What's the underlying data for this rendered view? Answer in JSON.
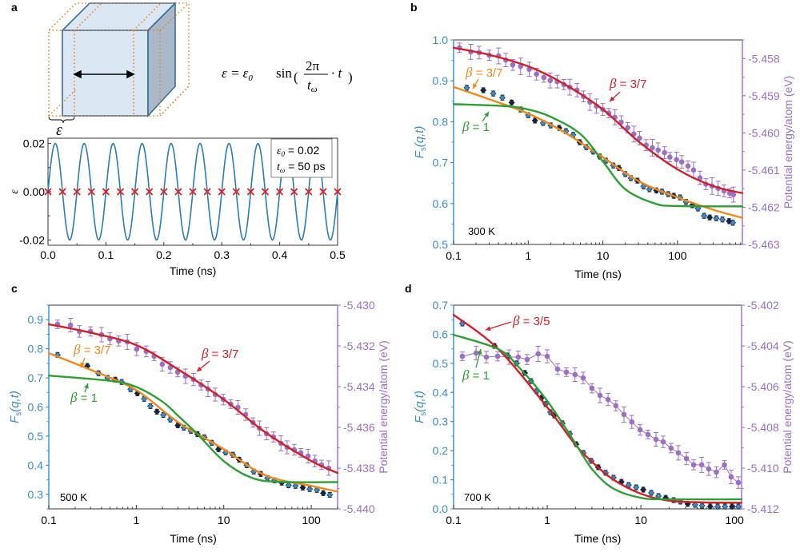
{
  "colors": {
    "left_axis": "#3a8cc4",
    "right_axis": "#9b6fc4",
    "energy_points": "#9b6fc4",
    "fs_points_fill": "#3a8cc4",
    "fs_points_edge": "#14233f",
    "fit_red": "#d0202a",
    "fit_orange": "#f0891c",
    "fit_green": "#2e9e35",
    "sine": "#2a7db5",
    "markers": "#e02020",
    "box_fill": "#dbe7f3",
    "box_side": "#a9b9c9",
    "box_edge": "#3b6b9a",
    "dotted": "#e8832a"
  },
  "panel_a": {
    "letter": "a",
    "equation": {
      "lhs": "ε = ε",
      "sub0": "0",
      "fn": "sin",
      "num": "2π",
      "den": "t",
      "den_sub": "ω",
      "tail": "· t"
    },
    "strain_symbol": "ε"
  },
  "chart_data": [
    {
      "id": "a",
      "type": "line",
      "title": "",
      "xlabel": "Time (ns)",
      "ylabel": "ε",
      "xlim": [
        0,
        0.5
      ],
      "ylim": [
        -0.0222,
        0.0222
      ],
      "xticks": [
        0.0,
        0.1,
        0.2,
        0.3,
        0.4,
        0.5
      ],
      "xtick_labels": [
        "0.0",
        "0.1",
        "0.2",
        "0.3",
        "0.4",
        "0.5"
      ],
      "yticks": [
        -0.02,
        0.0,
        0.02
      ],
      "ytick_labels": [
        "-0.02",
        "0.00",
        "0.02"
      ],
      "series": [
        {
          "name": "strain",
          "kind": "sine",
          "amplitude": 0.02,
          "period_ns": 0.05
        }
      ],
      "markers": {
        "name": "sampling points",
        "symbol": "x",
        "x_start": 0,
        "x_step": 0.025,
        "count": 21,
        "y": 0
      },
      "legend": {
        "placement": "top-right",
        "lines": [
          {
            "sym": "ε",
            "sub": "0",
            "text": " = 0.02"
          },
          {
            "sym": "t",
            "sub": "ω",
            "text": " = 50 ps"
          }
        ]
      }
    },
    {
      "id": "b",
      "type": "scatter",
      "temperature_label": "300 K",
      "xlabel": "Time (ns)",
      "ylabel_left": {
        "main": "F",
        "sub": "s",
        "args": "(q,t)"
      },
      "ylabel_right": "Potential energy/atom (eV)",
      "xscale": "log",
      "xlim": [
        0.1,
        740
      ],
      "ylim_left": [
        0.5,
        1.0
      ],
      "ylim_right": [
        -5.463,
        -5.4575
      ],
      "xticks": [
        0.1,
        1,
        10,
        100
      ],
      "xtick_labels": [
        "0.1",
        "1",
        "10",
        "100"
      ],
      "yticks_left": [
        0.5,
        0.6,
        0.7,
        0.8,
        0.9,
        1.0
      ],
      "ytick_labels_left": [
        "0.5",
        "0.6",
        "0.7",
        "0.8",
        "0.9",
        "1.0"
      ],
      "yticks_right": [
        -5.463,
        -5.462,
        -5.461,
        -5.46,
        -5.459,
        -5.458
      ],
      "ytick_labels_right": [
        "-5.463",
        "-5.462",
        "-5.461",
        "-5.460",
        "-5.459",
        "-5.458"
      ],
      "fs_data": {
        "t": [
          0.15,
          0.25,
          0.34,
          0.45,
          0.6,
          0.79,
          1.0,
          1.23,
          1.58,
          2.0,
          2.6,
          3.2,
          4.0,
          4.9,
          6.0,
          7.4,
          9.1,
          11,
          13.8,
          16.4,
          20,
          23.7,
          29,
          35,
          42,
          52,
          62,
          75,
          89,
          108,
          130,
          158,
          188,
          227,
          270,
          330,
          400,
          490,
          550
        ],
        "v": [
          0.883,
          0.877,
          0.869,
          0.859,
          0.847,
          0.83,
          0.816,
          0.803,
          0.797,
          0.791,
          0.785,
          0.777,
          0.768,
          0.75,
          0.738,
          0.727,
          0.715,
          0.705,
          0.693,
          0.687,
          0.672,
          0.662,
          0.656,
          0.642,
          0.635,
          0.632,
          0.629,
          0.623,
          0.619,
          0.615,
          0.604,
          0.596,
          0.588,
          0.57,
          0.566,
          0.564,
          0.561,
          0.557,
          0.553
        ],
        "err": 0.006
      },
      "energy_data": {
        "t": [
          0.12,
          0.17,
          0.22,
          0.3,
          0.4,
          0.5,
          0.62,
          0.79,
          1.03,
          1.29,
          1.62,
          1.97,
          2.45,
          3.0,
          3.6,
          4.5,
          5.5,
          6.7,
          8.2,
          10,
          12,
          14.5,
          17.6,
          21.5,
          26,
          31,
          38,
          46,
          55,
          67,
          79,
          97,
          114,
          138,
          164,
          200,
          240,
          290,
          350,
          420,
          500,
          560
        ],
        "v": [
          -5.45771,
          -5.45782,
          -5.45784,
          -5.45791,
          -5.45793,
          -5.45804,
          -5.45817,
          -5.45821,
          -5.45829,
          -5.45842,
          -5.45851,
          -5.45859,
          -5.45862,
          -5.4587,
          -5.45877,
          -5.45885,
          -5.45902,
          -5.45917,
          -5.45928,
          -5.45937,
          -5.45947,
          -5.45958,
          -5.45971,
          -5.45986,
          -5.46003,
          -5.46014,
          -5.46033,
          -5.4604,
          -5.46046,
          -5.46053,
          -5.46065,
          -5.46072,
          -5.46078,
          -5.46089,
          -5.461,
          -5.46121,
          -5.46138,
          -5.46143,
          -5.46149,
          -5.46156,
          -5.46162,
          -5.46166
        ],
        "err": 0.00018
      },
      "fits": [
        {
          "name": "β = 3/7 (Fs)",
          "color_key": "fit_orange",
          "axis": "left",
          "t": [
            0.1,
            0.3,
            1,
            3,
            10,
            30,
            100,
            300,
            740
          ],
          "v": [
            0.885,
            0.855,
            0.82,
            0.775,
            0.713,
            0.655,
            0.615,
            0.585,
            0.565
          ]
        },
        {
          "name": "β = 1 (Fs)",
          "color_key": "fit_green",
          "axis": "left",
          "t": [
            0.1,
            0.5,
            1,
            2,
            5,
            10,
            20,
            50,
            100,
            740
          ],
          "v": [
            0.843,
            0.838,
            0.83,
            0.812,
            0.77,
            0.703,
            0.635,
            0.6,
            0.594,
            0.593
          ]
        },
        {
          "name": "β = 3/7 (energy)",
          "color_key": "fit_red",
          "axis": "right",
          "t": [
            0.1,
            0.3,
            1,
            3,
            10,
            30,
            100,
            300,
            740
          ],
          "v": [
            -5.45771,
            -5.4579,
            -5.45821,
            -5.45868,
            -5.45937,
            -5.46023,
            -5.46098,
            -5.46143,
            -5.46162
          ]
        }
      ],
      "annotations": [
        {
          "text_sym": "β",
          "text": " = 3/7",
          "color_key": "fit_orange"
        },
        {
          "text_sym": "β",
          "text": " = 1",
          "color_key": "fit_green"
        },
        {
          "text_sym": "β",
          "text": " = 3/7",
          "color_key": "fit_red"
        }
      ]
    },
    {
      "id": "c",
      "type": "scatter",
      "temperature_label": "500 K",
      "xlabel": "Time (ns)",
      "ylabel_left": {
        "main": "F",
        "sub": "s",
        "args": "(q,t)"
      },
      "ylabel_right": "Potential energy/atom (eV)",
      "xscale": "log",
      "xlim": [
        0.1,
        200
      ],
      "ylim_left": [
        0.25,
        0.95
      ],
      "ylim_right": [
        -5.44,
        -5.43
      ],
      "xticks": [
        0.1,
        1,
        10,
        100
      ],
      "xtick_labels": [
        "0.1",
        "1",
        "10",
        "100"
      ],
      "yticks_left": [
        0.3,
        0.4,
        0.5,
        0.6,
        0.7,
        0.8,
        0.9
      ],
      "ytick_labels_left": [
        "0.3",
        "0.4",
        "0.5",
        "0.6",
        "0.7",
        "0.8",
        "0.9"
      ],
      "yticks_right": [
        -5.44,
        -5.438,
        -5.436,
        -5.434,
        -5.432,
        -5.43
      ],
      "ytick_labels_right": [
        "-5.440",
        "-5.438",
        "-5.436",
        "-5.434",
        "-5.432",
        "-5.430"
      ],
      "fs_data": {
        "t": [
          0.126,
          0.276,
          0.37,
          0.47,
          0.575,
          0.68,
          0.86,
          1.03,
          1.23,
          1.45,
          1.72,
          2.04,
          2.45,
          2.98,
          3.5,
          4.2,
          5.0,
          6.0,
          7.3,
          8.7,
          10.5,
          12.7,
          15,
          18.3,
          22,
          26.5,
          31.5,
          38,
          46,
          55,
          66,
          80,
          96,
          116,
          137,
          163
        ],
        "v": [
          0.779,
          0.741,
          0.716,
          0.7,
          0.694,
          0.686,
          0.661,
          0.647,
          0.628,
          0.603,
          0.584,
          0.573,
          0.557,
          0.537,
          0.529,
          0.518,
          0.507,
          0.496,
          0.477,
          0.455,
          0.444,
          0.436,
          0.419,
          0.4,
          0.378,
          0.37,
          0.356,
          0.348,
          0.34,
          0.331,
          0.329,
          0.323,
          0.318,
          0.315,
          0.304,
          0.298
        ],
        "err": 0.006
      },
      "energy_data": {
        "t": [
          0.126,
          0.177,
          0.224,
          0.3,
          0.4,
          0.5,
          0.63,
          0.79,
          1.01,
          1.3,
          1.6,
          1.98,
          2.45,
          2.97,
          3.65,
          4.5,
          5.5,
          6.6,
          8.0,
          9.9,
          12,
          14.5,
          17.8,
          21.6,
          25.6,
          30.8,
          37,
          45,
          53,
          64,
          76,
          92,
          110,
          131,
          158
        ],
        "v": [
          -5.43094,
          -5.43098,
          -5.43129,
          -5.43129,
          -5.43145,
          -5.43165,
          -5.43176,
          -5.4318,
          -5.43216,
          -5.43227,
          -5.43251,
          -5.4329,
          -5.43306,
          -5.43329,
          -5.43349,
          -5.43365,
          -5.43392,
          -5.43412,
          -5.43439,
          -5.43463,
          -5.43486,
          -5.43502,
          -5.43537,
          -5.43576,
          -5.43604,
          -5.43631,
          -5.43647,
          -5.43678,
          -5.43698,
          -5.4371,
          -5.43725,
          -5.43741,
          -5.43765,
          -5.43784,
          -5.438
        ],
        "err": 0.0003
      },
      "fits": [
        {
          "name": "β = 3/7 (Fs)",
          "color_key": "fit_orange",
          "axis": "left",
          "t": [
            0.1,
            0.3,
            1,
            3,
            10,
            30,
            100,
            200
          ],
          "v": [
            0.785,
            0.728,
            0.658,
            0.548,
            0.455,
            0.365,
            0.329,
            0.309
          ]
        },
        {
          "name": "β = 1 (Fs)",
          "color_key": "fit_green",
          "axis": "left",
          "t": [
            0.1,
            0.5,
            1,
            2,
            3,
            5,
            10,
            20,
            40,
            200
          ],
          "v": [
            0.708,
            0.69,
            0.669,
            0.618,
            0.57,
            0.507,
            0.414,
            0.359,
            0.343,
            0.342
          ]
        },
        {
          "name": "β = 3/7 (energy)",
          "color_key": "fit_red",
          "axis": "right",
          "t": [
            0.1,
            0.3,
            1,
            3,
            10,
            30,
            100,
            200
          ],
          "v": [
            -5.43094,
            -5.43135,
            -5.43196,
            -5.43315,
            -5.43463,
            -5.43625,
            -5.43765,
            -5.43824
          ]
        }
      ],
      "annotations": [
        {
          "text_sym": "β",
          "text": " = 3/7",
          "color_key": "fit_orange"
        },
        {
          "text_sym": "β",
          "text": " = 1",
          "color_key": "fit_green"
        },
        {
          "text_sym": "β",
          "text": " = 3/7",
          "color_key": "fit_red"
        }
      ]
    },
    {
      "id": "d",
      "type": "scatter",
      "temperature_label": "700 K",
      "xlabel": "Time (ns)",
      "ylabel_left": {
        "main": "F",
        "sub": "s",
        "args": "(q,t)"
      },
      "ylabel_right": "Potential energy/atom (eV)",
      "xscale": "log",
      "xlim": [
        0.1,
        119
      ],
      "ylim_left": [
        0.0,
        0.7
      ],
      "ylim_right": [
        -5.412,
        -5.402
      ],
      "xticks": [
        0.1,
        1,
        10,
        100
      ],
      "xtick_labels": [
        "0.1",
        "1",
        "10",
        "100"
      ],
      "yticks_left": [
        0.0,
        0.1,
        0.2,
        0.3,
        0.4,
        0.5,
        0.6,
        0.7
      ],
      "ytick_labels_left": [
        "0.0",
        "0.1",
        "0.2",
        "0.3",
        "0.4",
        "0.5",
        "0.6",
        "0.7"
      ],
      "yticks_right": [
        -5.412,
        -5.41,
        -5.408,
        -5.406,
        -5.404,
        -5.402
      ],
      "ytick_labels_right": [
        "-5.412",
        "-5.410",
        "-5.408",
        "-5.406",
        "-5.404",
        "-5.402"
      ],
      "fs_data": {
        "t": [
          0.124,
          0.273,
          0.374,
          0.47,
          0.576,
          0.67,
          0.77,
          0.87,
          0.96,
          1.08,
          1.19,
          1.45,
          1.74,
          2.04,
          2.43,
          2.95,
          3.5,
          4.2,
          5.1,
          6.2,
          7.4,
          8.9,
          10.6,
          12.9,
          15.4,
          18.4,
          22.4,
          26.4,
          31.6,
          37.9,
          45,
          55,
          66,
          79,
          94,
          110
        ],
        "v": [
          0.637,
          0.56,
          0.527,
          0.5,
          0.467,
          0.439,
          0.404,
          0.382,
          0.36,
          0.332,
          0.321,
          0.294,
          0.258,
          0.222,
          0.192,
          0.165,
          0.143,
          0.124,
          0.107,
          0.093,
          0.082,
          0.074,
          0.066,
          0.055,
          0.044,
          0.038,
          0.03,
          0.025,
          0.017,
          0.014,
          0.011,
          0.008,
          0.008,
          0.008,
          0.008,
          0.008
        ],
        "err": 0.006
      },
      "energy_data": {
        "t": [
          0.124,
          0.174,
          0.224,
          0.295,
          0.39,
          0.49,
          0.61,
          0.8,
          1.0,
          1.29,
          1.6,
          1.98,
          2.42,
          3.0,
          3.66,
          4.46,
          5.4,
          6.6,
          8.0,
          9.8,
          11.9,
          14.5,
          17.3,
          21,
          25.1,
          30.7,
          36.6,
          44.6,
          53,
          64,
          78,
          92,
          110
        ],
        "v": [
          -5.40451,
          -5.40435,
          -5.40455,
          -5.40451,
          -5.40455,
          -5.40455,
          -5.40467,
          -5.40439,
          -5.40451,
          -5.40514,
          -5.40529,
          -5.40541,
          -5.40557,
          -5.40608,
          -5.40643,
          -5.40663,
          -5.40694,
          -5.40737,
          -5.40773,
          -5.40812,
          -5.40835,
          -5.40859,
          -5.40871,
          -5.40902,
          -5.40925,
          -5.40953,
          -5.40984,
          -5.40984,
          -5.41004,
          -5.4102,
          -5.40984,
          -5.41043,
          -5.41071
        ],
        "err": 0.0003,
        "connected": true
      },
      "fits": [
        {
          "name": "β = 3/5 (Fs)",
          "color_key": "fit_red",
          "axis": "left",
          "t": [
            0.1,
            0.3,
            1,
            2,
            3,
            5,
            10,
            20,
            50,
            119
          ],
          "v": [
            0.667,
            0.549,
            0.349,
            0.22,
            0.162,
            0.102,
            0.052,
            0.028,
            0.022,
            0.021
          ]
        },
        {
          "name": "β = 1 (Fs)",
          "color_key": "fit_green",
          "axis": "left",
          "t": [
            0.1,
            0.3,
            0.5,
            1,
            2,
            3,
            5,
            10,
            20,
            119
          ],
          "v": [
            0.598,
            0.549,
            0.486,
            0.371,
            0.225,
            0.137,
            0.071,
            0.038,
            0.033,
            0.033
          ]
        }
      ],
      "annotations": [
        {
          "text_sym": "β",
          "text": " = 3/5",
          "color_key": "fit_red"
        },
        {
          "text_sym": "β",
          "text": " = 1",
          "color_key": "fit_green"
        }
      ]
    }
  ]
}
